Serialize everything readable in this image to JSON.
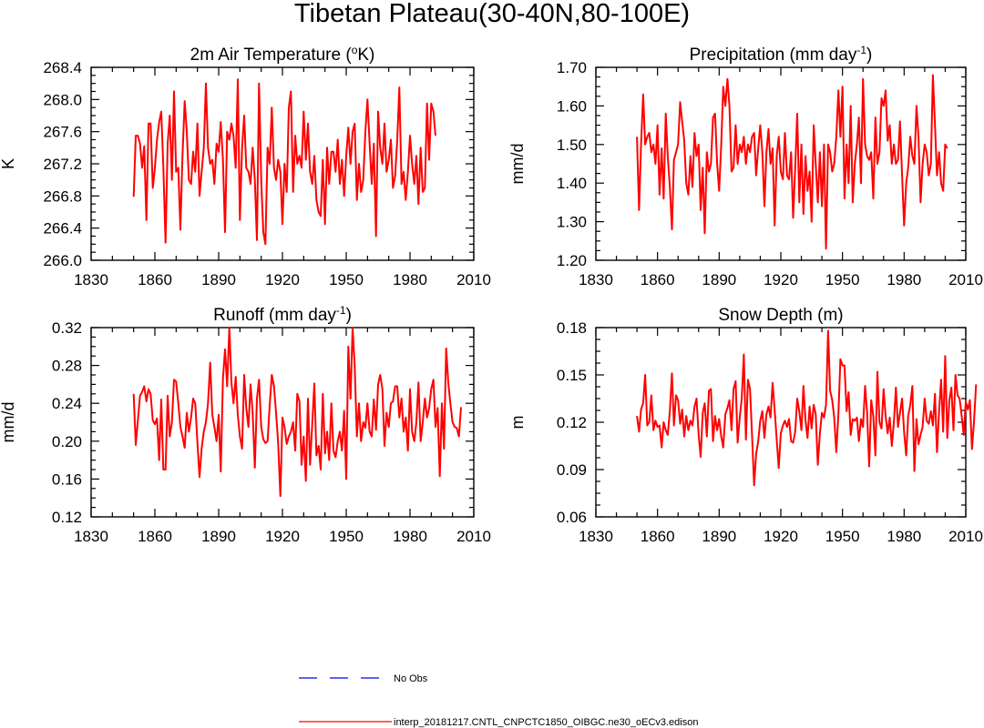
{
  "title": "Tibetan Plateau(30-40N,80-100E)",
  "legend": {
    "entries": [
      {
        "label": "No Obs",
        "color": "#0000ff",
        "style": "dashed"
      },
      {
        "label": "interp_20181217.CNTL_CNPCTC1850_OIBGC.ne30_oECv3.edison",
        "color": "#ff0000",
        "style": "solid"
      }
    ]
  },
  "chart_data": [
    {
      "type": "line",
      "title": "2m Air Temperature (",
      "title_sup": "o",
      "title_tail": "K)",
      "ylabel": "K",
      "xlabel": "",
      "xlim": [
        1830,
        2010
      ],
      "ylim": [
        266.0,
        268.4
      ],
      "xticks": [
        "1830",
        "1860",
        "1890",
        "1920",
        "1950",
        "1980",
        "2010"
      ],
      "yticks": [
        "266.0",
        "266.4",
        "266.8",
        "267.2",
        "267.6",
        "268.0",
        "268.4"
      ],
      "x_start": 1850,
      "series": [
        {
          "name": "CNTL",
          "color": "#ff0000",
          "values": [
            266.79,
            267.55,
            267.55,
            267.45,
            267.15,
            267.42,
            266.5,
            267.7,
            267.7,
            266.9,
            267.15,
            267.5,
            267.72,
            267.85,
            267.15,
            266.22,
            267.45,
            267.8,
            267.0,
            268.1,
            267.1,
            267.15,
            266.38,
            267.3,
            267.98,
            267.6,
            267.0,
            266.95,
            267.35,
            267.1,
            267.7,
            266.8,
            267.1,
            267.4,
            268.2,
            267.4,
            267.2,
            267.25,
            266.95,
            267.45,
            267.35,
            267.72,
            267.25,
            266.35,
            267.6,
            267.5,
            267.7,
            267.55,
            267.15,
            268.25,
            266.5,
            267.4,
            267.8,
            267.15,
            267.1,
            266.95,
            267.4,
            267.0,
            266.25,
            268.2,
            267.0,
            266.35,
            266.2,
            267.4,
            267.2,
            267.9,
            267.15,
            267.0,
            267.25,
            267.1,
            266.45,
            267.2,
            266.85,
            267.9,
            268.1,
            266.85,
            267.55,
            267.2,
            267.3,
            267.15,
            267.85,
            267.25,
            267.7,
            267.1,
            266.95,
            267.3,
            266.75,
            266.6,
            266.55,
            267.25,
            266.45,
            267.4,
            266.95,
            267.35,
            267.35,
            267.1,
            267.5,
            266.95,
            267.25,
            266.8,
            267.3,
            267.65,
            267.2,
            267.6,
            267.7,
            266.75,
            267.2,
            266.85,
            267.0,
            267.6,
            268.0,
            267.45,
            266.95,
            267.45,
            266.3,
            267.85,
            267.4,
            267.2,
            267.7,
            267.1,
            267.25,
            267.5,
            266.9,
            267.05,
            267.5,
            268.15,
            266.95,
            267.1,
            266.75,
            267.1,
            267.55,
            267.2,
            266.95,
            267.3,
            266.7,
            267.4,
            266.85,
            266.9,
            267.95,
            267.25,
            267.95,
            267.85,
            267.55
          ]
        }
      ]
    },
    {
      "type": "line",
      "title": "Precipitation (mm day",
      "title_sup": "-1",
      "title_tail": ")",
      "ylabel": "mm/d",
      "xlabel": "",
      "xlim": [
        1830,
        2010
      ],
      "ylim": [
        1.2,
        1.7
      ],
      "xticks": [
        "1830",
        "1860",
        "1890",
        "1920",
        "1950",
        "1980",
        "2010"
      ],
      "yticks": [
        "1.20",
        "1.30",
        "1.40",
        "1.50",
        "1.60",
        "1.70"
      ],
      "x_start": 1850,
      "series": [
        {
          "name": "CNTL",
          "color": "#ff0000",
          "values": [
            1.52,
            1.33,
            1.5,
            1.63,
            1.5,
            1.52,
            1.53,
            1.48,
            1.5,
            1.45,
            1.55,
            1.37,
            1.49,
            1.36,
            1.58,
            1.47,
            1.39,
            1.28,
            1.46,
            1.48,
            1.5,
            1.61,
            1.56,
            1.51,
            1.4,
            1.37,
            1.47,
            1.39,
            1.53,
            1.47,
            1.5,
            1.33,
            1.44,
            1.27,
            1.48,
            1.43,
            1.45,
            1.57,
            1.58,
            1.45,
            1.38,
            1.5,
            1.65,
            1.6,
            1.67,
            1.6,
            1.43,
            1.44,
            1.55,
            1.45,
            1.5,
            1.48,
            1.52,
            1.45,
            1.5,
            1.48,
            1.52,
            1.53,
            1.42,
            1.49,
            1.55,
            1.48,
            1.34,
            1.48,
            1.54,
            1.45,
            1.49,
            1.29,
            1.47,
            1.52,
            1.43,
            1.41,
            1.53,
            1.42,
            1.41,
            1.48,
            1.31,
            1.44,
            1.58,
            1.35,
            1.5,
            1.32,
            1.47,
            1.38,
            1.43,
            1.3,
            1.55,
            1.45,
            1.35,
            1.48,
            1.34,
            1.5,
            1.23,
            1.5,
            1.48,
            1.43,
            1.45,
            1.52,
            1.64,
            1.52,
            1.65,
            1.36,
            1.5,
            1.4,
            1.6,
            1.35,
            1.45,
            1.5,
            1.57,
            1.4,
            1.67,
            1.5,
            1.47,
            1.46,
            1.48,
            1.36,
            1.57,
            1.45,
            1.48,
            1.62,
            1.6,
            1.64,
            1.51,
            1.55,
            1.45,
            1.5,
            1.45,
            1.46,
            1.56,
            1.42,
            1.29,
            1.4,
            1.44,
            1.52,
            1.47,
            1.45,
            1.6,
            1.52,
            1.35,
            1.45,
            1.5,
            1.48,
            1.42,
            1.45,
            1.68,
            1.55,
            1.42,
            1.48,
            1.4,
            1.38,
            1.5,
            1.49
          ]
        }
      ]
    },
    {
      "type": "line",
      "title": "Runoff (mm day",
      "title_sup": "-1",
      "title_tail": ")",
      "ylabel": "mm/d",
      "xlabel": "",
      "xlim": [
        1830,
        2010
      ],
      "ylim": [
        0.12,
        0.32
      ],
      "xticks": [
        "1830",
        "1860",
        "1890",
        "1920",
        "1950",
        "1980",
        "2010"
      ],
      "yticks": [
        "0.12",
        "0.16",
        "0.20",
        "0.24",
        "0.28",
        "0.32"
      ],
      "x_start": 1850,
      "series": [
        {
          "name": "CNTL",
          "color": "#ff0000",
          "values": [
            0.25,
            0.196,
            0.222,
            0.248,
            0.252,
            0.258,
            0.242,
            0.255,
            0.25,
            0.222,
            0.218,
            0.224,
            0.18,
            0.244,
            0.17,
            0.17,
            0.248,
            0.205,
            0.22,
            0.265,
            0.263,
            0.24,
            0.215,
            0.205,
            0.193,
            0.23,
            0.21,
            0.225,
            0.245,
            0.24,
            0.198,
            0.162,
            0.192,
            0.21,
            0.22,
            0.24,
            0.283,
            0.228,
            0.215,
            0.2,
            0.228,
            0.168,
            0.266,
            0.297,
            0.258,
            0.32,
            0.262,
            0.24,
            0.268,
            0.228,
            0.205,
            0.192,
            0.27,
            0.235,
            0.215,
            0.26,
            0.23,
            0.172,
            0.245,
            0.265,
            0.215,
            0.202,
            0.198,
            0.2,
            0.238,
            0.27,
            0.258,
            0.23,
            0.198,
            0.142,
            0.225,
            0.215,
            0.197,
            0.205,
            0.21,
            0.22,
            0.19,
            0.25,
            0.242,
            0.175,
            0.205,
            0.158,
            0.245,
            0.175,
            0.218,
            0.261,
            0.185,
            0.195,
            0.17,
            0.25,
            0.187,
            0.21,
            0.18,
            0.24,
            0.19,
            0.183,
            0.2,
            0.21,
            0.19,
            0.232,
            0.16,
            0.3,
            0.245,
            0.32,
            0.28,
            0.205,
            0.24,
            0.2,
            0.22,
            0.214,
            0.24,
            0.21,
            0.205,
            0.244,
            0.212,
            0.26,
            0.27,
            0.255,
            0.195,
            0.23,
            0.215,
            0.24,
            0.242,
            0.258,
            0.258,
            0.225,
            0.245,
            0.21,
            0.225,
            0.19,
            0.255,
            0.21,
            0.2,
            0.22,
            0.262,
            0.2,
            0.22,
            0.245,
            0.225,
            0.235,
            0.255,
            0.265,
            0.215,
            0.235,
            0.163,
            0.24,
            0.192,
            0.298,
            0.262,
            0.24,
            0.22,
            0.215,
            0.214,
            0.205,
            0.236
          ]
        }
      ]
    },
    {
      "type": "line",
      "title": "Snow Depth (m)",
      "title_sup": "",
      "title_tail": "",
      "ylabel": "m",
      "xlabel": "",
      "xlim": [
        1830,
        2010
      ],
      "ylim": [
        0.06,
        0.18
      ],
      "xticks": [
        "1830",
        "1860",
        "1890",
        "1920",
        "1950",
        "1980",
        "2010"
      ],
      "yticks": [
        "0.06",
        "0.09",
        "0.12",
        "0.15",
        "0.18"
      ],
      "x_start": 1850,
      "series": [
        {
          "name": "CNTL",
          "color": "#ff0000",
          "values": [
            0.124,
            0.114,
            0.128,
            0.132,
            0.15,
            0.118,
            0.12,
            0.137,
            0.115,
            0.121,
            0.117,
            0.118,
            0.104,
            0.12,
            0.115,
            0.112,
            0.127,
            0.151,
            0.118,
            0.137,
            0.134,
            0.119,
            0.128,
            0.111,
            0.124,
            0.115,
            0.121,
            0.118,
            0.13,
            0.135,
            0.112,
            0.098,
            0.126,
            0.132,
            0.111,
            0.14,
            0.141,
            0.108,
            0.124,
            0.115,
            0.122,
            0.111,
            0.104,
            0.125,
            0.129,
            0.134,
            0.115,
            0.141,
            0.146,
            0.107,
            0.123,
            0.135,
            0.163,
            0.109,
            0.147,
            0.141,
            0.112,
            0.08,
            0.1,
            0.108,
            0.121,
            0.127,
            0.11,
            0.125,
            0.13,
            0.123,
            0.145,
            0.128,
            0.109,
            0.091,
            0.113,
            0.118,
            0.121,
            0.117,
            0.122,
            0.108,
            0.107,
            0.114,
            0.135,
            0.127,
            0.115,
            0.143,
            0.121,
            0.11,
            0.13,
            0.116,
            0.131,
            0.125,
            0.093,
            0.113,
            0.126,
            0.123,
            0.131,
            0.178,
            0.14,
            0.134,
            0.123,
            0.101,
            0.125,
            0.16,
            0.156,
            0.156,
            0.127,
            0.139,
            0.112,
            0.122,
            0.121,
            0.123,
            0.108,
            0.122,
            0.117,
            0.143,
            0.126,
            0.092,
            0.134,
            0.124,
            0.099,
            0.152,
            0.12,
            0.116,
            0.141,
            0.124,
            0.113,
            0.123,
            0.105,
            0.12,
            0.142,
            0.117,
            0.126,
            0.135,
            0.114,
            0.099,
            0.124,
            0.131,
            0.143,
            0.089,
            0.122,
            0.106,
            0.112,
            0.117,
            0.135,
            0.121,
            0.119,
            0.127,
            0.118,
            0.138,
            0.101,
            0.127,
            0.147,
            0.114,
            0.162,
            0.11,
            0.134,
            0.142,
            0.115,
            0.15,
            0.137,
            0.135,
            0.124,
            0.112,
            0.133,
            0.128,
            0.134,
            0.103,
            0.12,
            0.144
          ]
        }
      ]
    }
  ]
}
